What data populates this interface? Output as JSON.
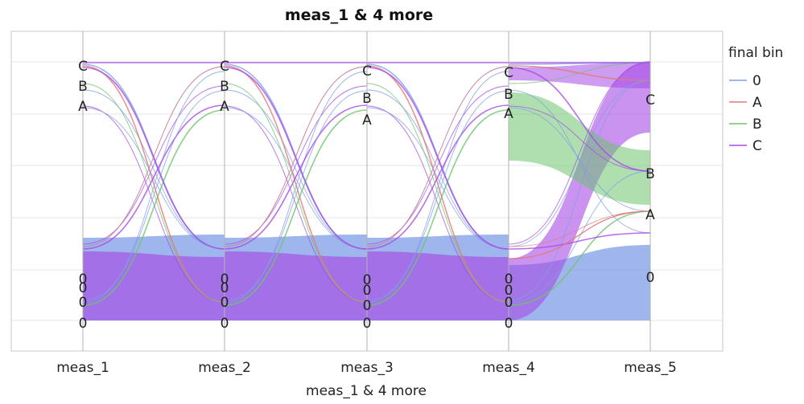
{
  "chart_data": {
    "type": "parallel-sets",
    "title": "meas_1 & 4 more",
    "xlabel": "meas_1 & 4 more",
    "axes": [
      "meas_1",
      "meas_2",
      "meas_3",
      "meas_4",
      "meas_5"
    ],
    "legend": {
      "title": "final bin",
      "placement": "right",
      "entries": [
        {
          "label": "0",
          "color": "#7f9ee6"
        },
        {
          "label": "A",
          "color": "#e07a7a"
        },
        {
          "label": "B",
          "color": "#6ec46e"
        },
        {
          "label": "C",
          "color": "#a64be6"
        }
      ]
    },
    "node_labels": [
      {
        "axis": "meas_1",
        "labels": [
          "C",
          "B",
          "A",
          "0",
          "0",
          "0",
          "0"
        ]
      },
      {
        "axis": "meas_2",
        "labels": [
          "C",
          "B",
          "A",
          "0",
          "0",
          "0",
          "0"
        ]
      },
      {
        "axis": "meas_3",
        "labels": [
          "C",
          "B",
          "A",
          "0",
          "0",
          "0",
          "0"
        ]
      },
      {
        "axis": "meas_4",
        "labels": [
          "C",
          "B",
          "A",
          "0",
          "0",
          "0",
          "0"
        ]
      },
      {
        "axis": "meas_5",
        "labels": [
          "C",
          "B",
          "A",
          "0"
        ]
      }
    ],
    "grid": true
  }
}
